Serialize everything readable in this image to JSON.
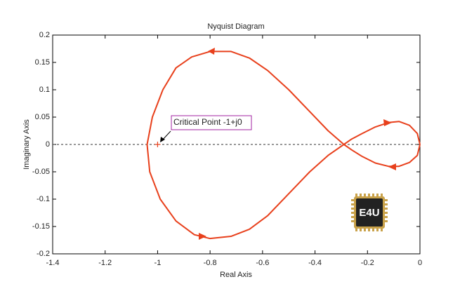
{
  "chart_data": {
    "type": "line",
    "title": "Nyquist Diagram",
    "x_label": "Real Axis",
    "y_label": "Imaginary Axis",
    "series": [
      {
        "color": "#e8401c",
        "x": [
          0,
          -0.01,
          -0.04,
          -0.08,
          -0.12,
          -0.17,
          -0.22,
          -0.26,
          -0.29,
          -0.35,
          -0.42,
          -0.5,
          -0.58,
          -0.65,
          -0.72,
          -0.8,
          -0.87,
          -0.93,
          -0.98,
          -1.02,
          -1.04,
          -1.03,
          -0.99,
          -0.93,
          -0.86,
          -0.8,
          -0.72,
          -0.65,
          -0.58,
          -0.5,
          -0.42,
          -0.35,
          -0.29,
          -0.26,
          -0.22,
          -0.17,
          -0.12,
          -0.08,
          -0.04,
          -0.01,
          0
        ],
        "values": [
          0,
          0.02,
          0.035,
          0.042,
          0.04,
          0.032,
          0.02,
          0.01,
          0,
          0.025,
          0.06,
          0.1,
          0.135,
          0.158,
          0.17,
          0.17,
          0.16,
          0.14,
          0.1,
          0.05,
          0,
          -0.05,
          -0.1,
          -0.14,
          -0.165,
          -0.172,
          -0.168,
          -0.155,
          -0.13,
          -0.09,
          -0.05,
          -0.02,
          0,
          -0.01,
          -0.022,
          -0.034,
          -0.04,
          -0.04,
          -0.033,
          -0.02,
          0
        ]
      }
    ],
    "critical_point": {
      "x": -1,
      "y": 0,
      "label": "Critical Point -1+j0"
    },
    "reference_line": 0,
    "watermark": "E4U",
    "xlim": [
      -1.4,
      0
    ],
    "xticks": [
      -1.4,
      -1.2,
      -1,
      -0.8,
      -0.6,
      -0.4,
      -0.2,
      0
    ],
    "ylim": [
      -0.2,
      0.2
    ],
    "yticks": [
      -0.2,
      -0.15,
      -0.1,
      -0.05,
      0,
      0.05,
      0.1,
      0.15,
      0.2
    ],
    "grid": false
  }
}
